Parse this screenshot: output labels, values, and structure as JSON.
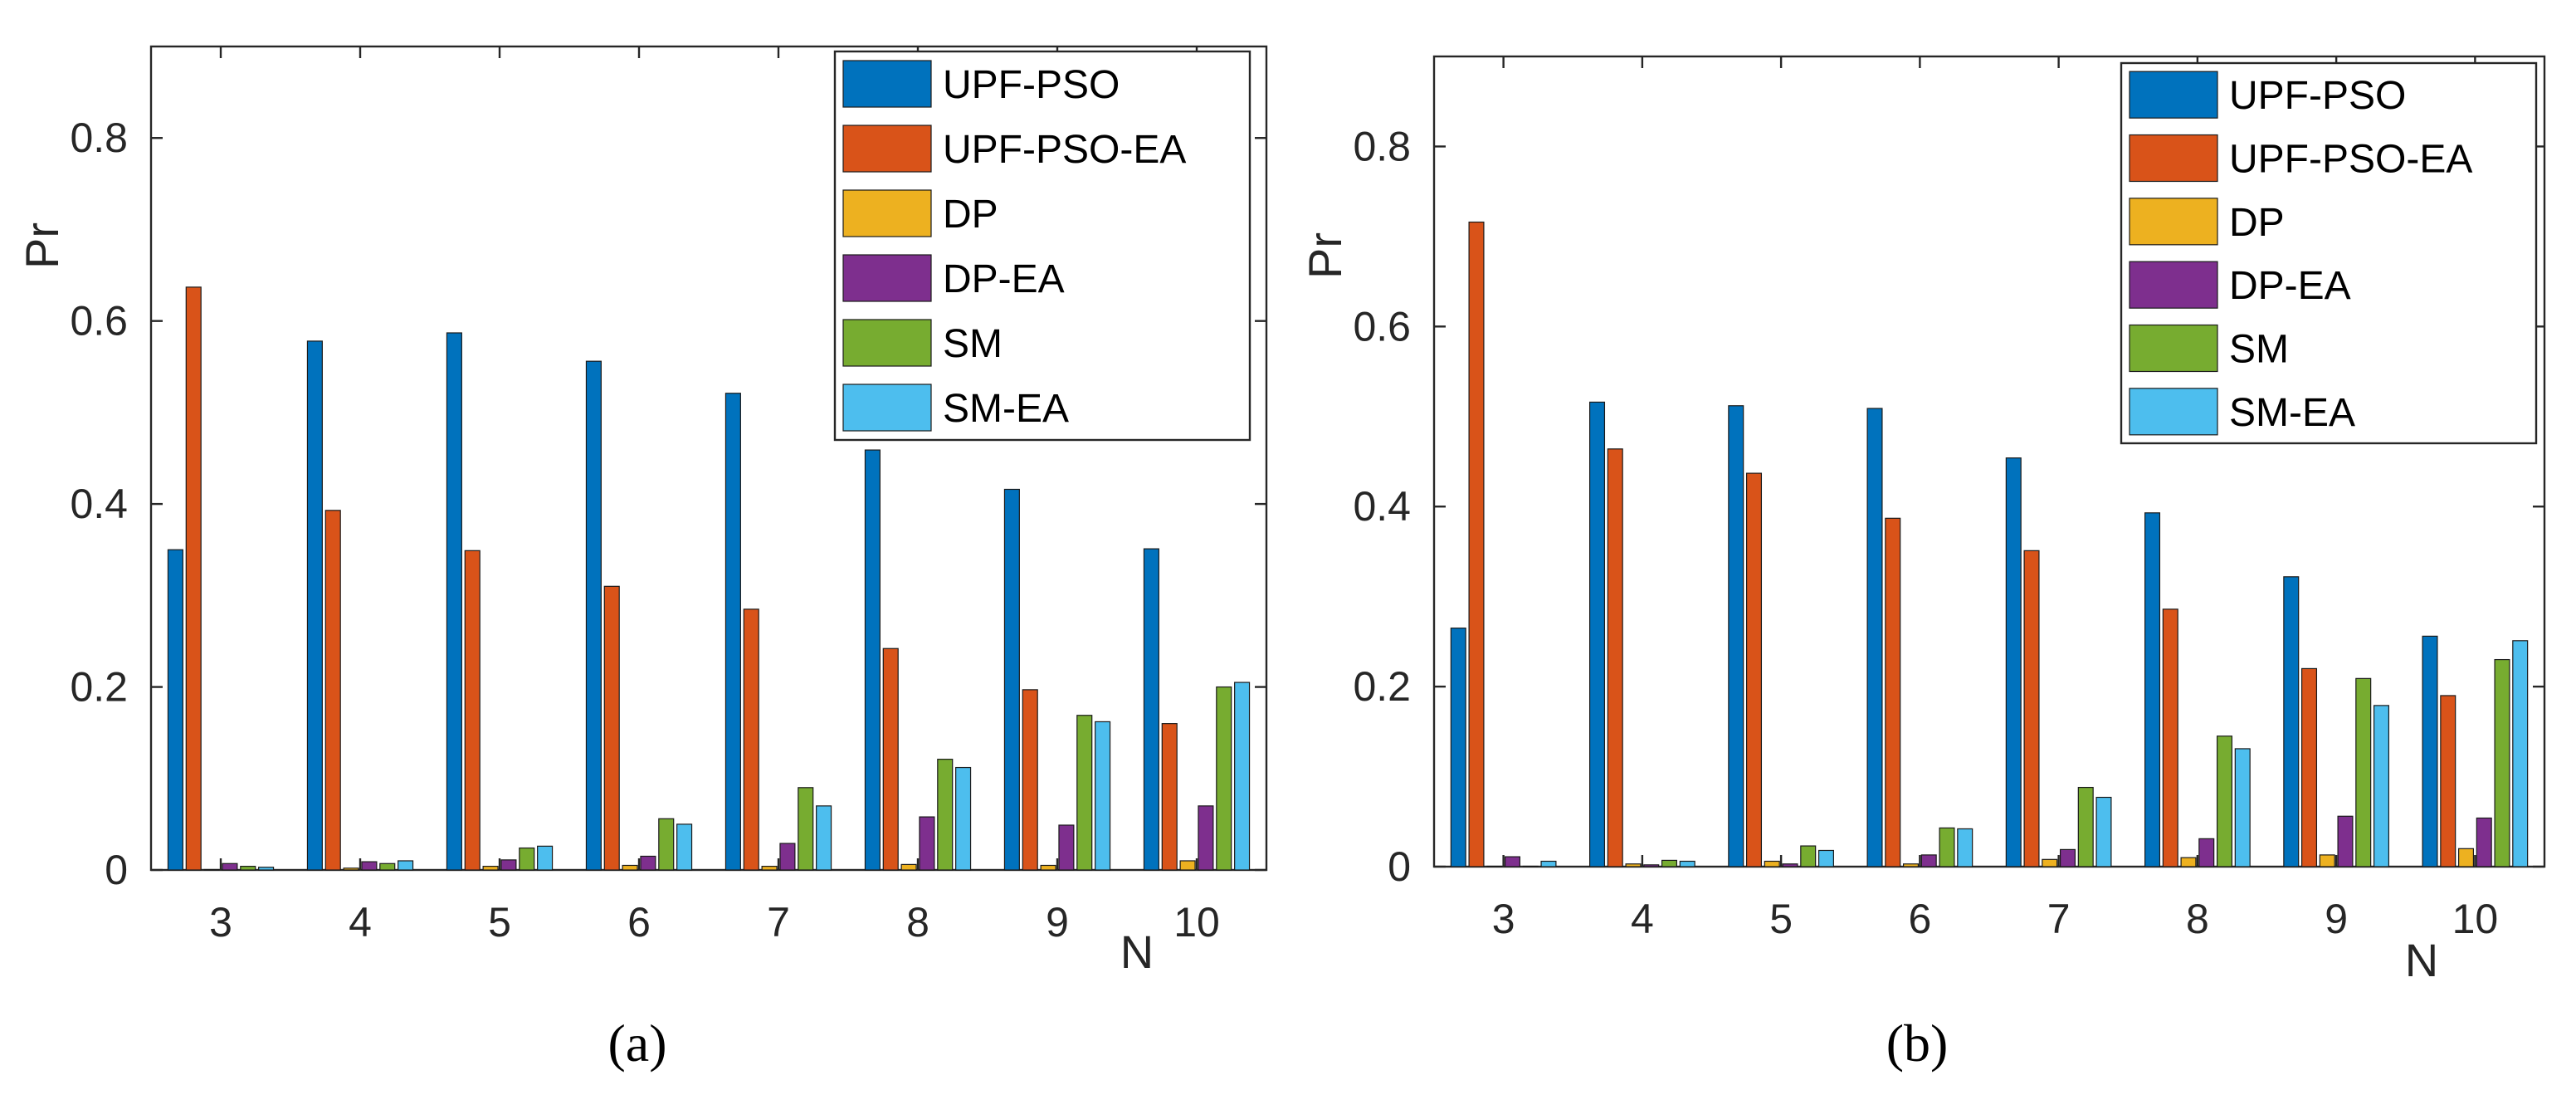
{
  "colors": {
    "UPF-PSO": "#0072BD",
    "UPF-PSO-EA": "#D95319",
    "DP": "#EDB120",
    "DP-EA": "#7E2F8E",
    "SM": "#77AC30",
    "SM-EA": "#4DBEEE"
  },
  "chart_data": [
    {
      "type": "bar",
      "panel_label": "(a)",
      "xlabel": "N",
      "ylabel": "Pr",
      "ylim": [
        0,
        0.9
      ],
      "yticks": [
        0,
        0.2,
        0.4,
        0.6,
        0.8
      ],
      "ytick_labels": [
        "0",
        "0.2",
        "0.4",
        "0.6",
        "0.8"
      ],
      "categories": [
        "3",
        "4",
        "5",
        "6",
        "7",
        "8",
        "9",
        "10"
      ],
      "legend_position": "top-right",
      "series": [
        {
          "name": "UPF-PSO",
          "values": [
            0.35,
            0.578,
            0.587,
            0.556,
            0.521,
            0.459,
            0.416,
            0.351
          ]
        },
        {
          "name": "UPF-PSO-EA",
          "values": [
            0.637,
            0.393,
            0.349,
            0.31,
            0.285,
            0.242,
            0.197,
            0.16
          ]
        },
        {
          "name": "DP",
          "values": [
            0.0,
            0.002,
            0.004,
            0.005,
            0.004,
            0.006,
            0.005,
            0.01
          ]
        },
        {
          "name": "DP-EA",
          "values": [
            0.007,
            0.009,
            0.011,
            0.015,
            0.029,
            0.058,
            0.049,
            0.07
          ]
        },
        {
          "name": "SM",
          "values": [
            0.004,
            0.007,
            0.024,
            0.056,
            0.09,
            0.121,
            0.169,
            0.2
          ]
        },
        {
          "name": "SM-EA",
          "values": [
            0.003,
            0.01,
            0.026,
            0.05,
            0.07,
            0.112,
            0.162,
            0.205
          ]
        }
      ]
    },
    {
      "type": "bar",
      "panel_label": "(b)",
      "xlabel": "N",
      "ylabel": "Pr",
      "ylim": [
        0,
        0.9
      ],
      "yticks": [
        0,
        0.2,
        0.4,
        0.6,
        0.8
      ],
      "ytick_labels": [
        "0",
        "0.2",
        "0.4",
        "0.6",
        "0.8"
      ],
      "categories": [
        "3",
        "4",
        "5",
        "6",
        "7",
        "8",
        "9",
        "10"
      ],
      "legend_position": "top-right",
      "series": [
        {
          "name": "UPF-PSO",
          "values": [
            0.265,
            0.516,
            0.512,
            0.509,
            0.454,
            0.393,
            0.322,
            0.256
          ]
        },
        {
          "name": "UPF-PSO-EA",
          "values": [
            0.716,
            0.464,
            0.437,
            0.387,
            0.351,
            0.286,
            0.22,
            0.19
          ]
        },
        {
          "name": "DP",
          "values": [
            0.0,
            0.003,
            0.006,
            0.003,
            0.008,
            0.01,
            0.013,
            0.02
          ]
        },
        {
          "name": "DP-EA",
          "values": [
            0.011,
            0.002,
            0.003,
            0.013,
            0.019,
            0.031,
            0.056,
            0.054
          ]
        },
        {
          "name": "SM",
          "values": [
            0.0,
            0.007,
            0.023,
            0.043,
            0.088,
            0.145,
            0.209,
            0.23
          ]
        },
        {
          "name": "SM-EA",
          "values": [
            0.006,
            0.006,
            0.018,
            0.042,
            0.077,
            0.131,
            0.179,
            0.251
          ]
        }
      ]
    }
  ]
}
